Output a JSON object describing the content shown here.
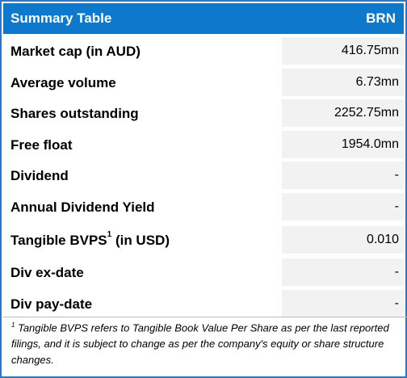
{
  "header": {
    "title": "Summary Table",
    "ticker": "BRN"
  },
  "rows": [
    {
      "label": "Market cap (in AUD)",
      "value": "416.75mn"
    },
    {
      "label": "Average volume",
      "value": "6.73mn"
    },
    {
      "label": "Shares outstanding",
      "value": "2252.75mn"
    },
    {
      "label": "Free float",
      "value": "1954.0mn"
    },
    {
      "label": "Dividend",
      "value": "-"
    },
    {
      "label": "Annual Dividend Yield",
      "value": "-"
    },
    {
      "label": "Tangible BVPS",
      "label_sup": "1",
      "label_suffix": " (in USD)",
      "value": "0.010"
    },
    {
      "label": "Div ex-date",
      "value": "-"
    },
    {
      "label": "Div pay-date",
      "value": "-"
    }
  ],
  "footnote": {
    "marker": "1",
    "text": "Tangible BVPS refers to Tangible Book Value Per Share as per the last reported filings, and it is subject to change as per the company's equity or share structure changes."
  },
  "colors": {
    "header_bg": "#0e78cc",
    "value_bg": "#f2f2f2",
    "border": "#2b78c6"
  }
}
